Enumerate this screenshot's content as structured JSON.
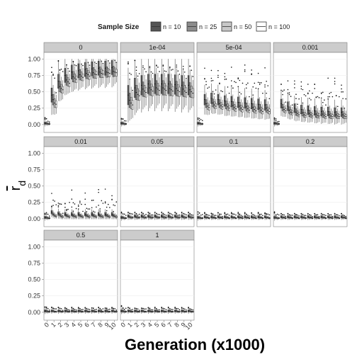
{
  "chart_data": {
    "type": "boxplot",
    "facet_labels": [
      "0",
      "1e-04",
      "5e-04",
      "0.001",
      "0.01",
      "0.05",
      "0.1",
      "0.2",
      "0.5",
      "1"
    ],
    "x_categories": [
      "0",
      "1",
      "2",
      "3",
      "4",
      "5",
      "6",
      "7",
      "8",
      "9",
      "10"
    ],
    "xlabel": "Generation (x1000)",
    "ylabel": "r",
    "ylabel_subscript": "d",
    "ylim": [
      -0.12,
      1.1
    ],
    "y_ticks": [
      0,
      0.25,
      0.5,
      0.75,
      1
    ],
    "y_tick_labels": [
      "0.00",
      "0.25",
      "0.50",
      "0.75",
      "1.00"
    ],
    "legend": {
      "title": "Sample Size",
      "position": "top",
      "entries": [
        {
          "label": "n = 10",
          "color": "#555555"
        },
        {
          "label": "n = 25",
          "color": "#8c8c8c"
        },
        {
          "label": "n = 50",
          "color": "#c8c8c8"
        },
        {
          "label": "n = 100",
          "color": "#ffffff"
        }
      ]
    },
    "medians": [
      {
        "n10": [
          0.02,
          0.45,
          0.66,
          0.75,
          0.8,
          0.82,
          0.84,
          0.85,
          0.86,
          0.86,
          0.87
        ],
        "n25": [
          0.02,
          0.38,
          0.58,
          0.68,
          0.73,
          0.76,
          0.78,
          0.79,
          0.8,
          0.8,
          0.81
        ],
        "n50": [
          0.01,
          0.33,
          0.55,
          0.65,
          0.71,
          0.74,
          0.76,
          0.77,
          0.78,
          0.79,
          0.8
        ],
        "n100": [
          0.01,
          0.31,
          0.53,
          0.63,
          0.69,
          0.72,
          0.74,
          0.76,
          0.77,
          0.78,
          0.79
        ]
      },
      {
        "n10": [
          0.02,
          0.45,
          0.56,
          0.6,
          0.62,
          0.62,
          0.62,
          0.62,
          0.61,
          0.6,
          0.6
        ],
        "n25": [
          0.02,
          0.37,
          0.49,
          0.54,
          0.56,
          0.56,
          0.56,
          0.55,
          0.55,
          0.54,
          0.53
        ],
        "n50": [
          0.01,
          0.33,
          0.46,
          0.51,
          0.53,
          0.54,
          0.54,
          0.53,
          0.52,
          0.51,
          0.5
        ],
        "n100": [
          0.01,
          0.3,
          0.44,
          0.49,
          0.51,
          0.52,
          0.52,
          0.51,
          0.5,
          0.49,
          0.48
        ]
      },
      {
        "n10": [
          0.02,
          0.38,
          0.4,
          0.38,
          0.36,
          0.35,
          0.34,
          0.33,
          0.32,
          0.31,
          0.3
        ],
        "n25": [
          0.02,
          0.32,
          0.33,
          0.32,
          0.3,
          0.29,
          0.28,
          0.27,
          0.26,
          0.25,
          0.25
        ],
        "n50": [
          0.01,
          0.28,
          0.3,
          0.29,
          0.27,
          0.26,
          0.25,
          0.24,
          0.23,
          0.22,
          0.22
        ],
        "n100": [
          0.01,
          0.26,
          0.28,
          0.27,
          0.25,
          0.24,
          0.23,
          0.22,
          0.21,
          0.2,
          0.2
        ]
      },
      {
        "n10": [
          0.02,
          0.32,
          0.28,
          0.25,
          0.23,
          0.22,
          0.21,
          0.2,
          0.2,
          0.19,
          0.19
        ],
        "n25": [
          0.02,
          0.26,
          0.22,
          0.19,
          0.18,
          0.17,
          0.16,
          0.16,
          0.15,
          0.15,
          0.15
        ],
        "n50": [
          0.01,
          0.23,
          0.19,
          0.17,
          0.15,
          0.15,
          0.14,
          0.14,
          0.13,
          0.13,
          0.13
        ],
        "n100": [
          0.01,
          0.21,
          0.18,
          0.15,
          0.14,
          0.13,
          0.13,
          0.12,
          0.12,
          0.12,
          0.12
        ]
      },
      {
        "n10": [
          0.02,
          0.1,
          0.08,
          0.07,
          0.07,
          0.07,
          0.07,
          0.07,
          0.07,
          0.07,
          0.07
        ],
        "n25": [
          0.02,
          0.07,
          0.06,
          0.05,
          0.05,
          0.05,
          0.05,
          0.05,
          0.05,
          0.05,
          0.05
        ],
        "n50": [
          0.01,
          0.05,
          0.04,
          0.04,
          0.04,
          0.04,
          0.04,
          0.04,
          0.04,
          0.04,
          0.04
        ],
        "n100": [
          0.01,
          0.04,
          0.03,
          0.03,
          0.03,
          0.03,
          0.03,
          0.03,
          0.03,
          0.03,
          0.03
        ]
      },
      {
        "n10": [
          0.02,
          0.04,
          0.04,
          0.04,
          0.04,
          0.04,
          0.04,
          0.04,
          0.04,
          0.04,
          0.04
        ],
        "n25": [
          0.02,
          0.03,
          0.03,
          0.03,
          0.03,
          0.03,
          0.03,
          0.03,
          0.03,
          0.03,
          0.03
        ],
        "n50": [
          0.01,
          0.02,
          0.02,
          0.02,
          0.02,
          0.02,
          0.02,
          0.02,
          0.02,
          0.02,
          0.02
        ],
        "n100": [
          0.01,
          0.02,
          0.02,
          0.02,
          0.02,
          0.02,
          0.02,
          0.02,
          0.02,
          0.02,
          0.02
        ]
      },
      {
        "n10": [
          0.02,
          0.03,
          0.03,
          0.03,
          0.03,
          0.03,
          0.03,
          0.03,
          0.03,
          0.03,
          0.03
        ],
        "n25": [
          0.02,
          0.02,
          0.02,
          0.02,
          0.02,
          0.02,
          0.02,
          0.02,
          0.02,
          0.02,
          0.02
        ],
        "n50": [
          0.01,
          0.02,
          0.02,
          0.02,
          0.02,
          0.02,
          0.02,
          0.02,
          0.02,
          0.02,
          0.02
        ],
        "n100": [
          0.01,
          0.01,
          0.01,
          0.01,
          0.01,
          0.01,
          0.01,
          0.01,
          0.01,
          0.01,
          0.01
        ]
      },
      {
        "n10": [
          0.02,
          0.03,
          0.03,
          0.03,
          0.03,
          0.03,
          0.03,
          0.03,
          0.03,
          0.03,
          0.03
        ],
        "n25": [
          0.02,
          0.02,
          0.02,
          0.02,
          0.02,
          0.02,
          0.02,
          0.02,
          0.02,
          0.02,
          0.02
        ],
        "n50": [
          0.01,
          0.02,
          0.02,
          0.02,
          0.02,
          0.02,
          0.02,
          0.02,
          0.02,
          0.02,
          0.02
        ],
        "n100": [
          0.01,
          0.01,
          0.01,
          0.01,
          0.01,
          0.01,
          0.01,
          0.01,
          0.01,
          0.01,
          0.01
        ]
      },
      {
        "n10": [
          0.02,
          0.02,
          0.02,
          0.02,
          0.02,
          0.02,
          0.02,
          0.02,
          0.02,
          0.02,
          0.02
        ],
        "n25": [
          0.02,
          0.02,
          0.02,
          0.02,
          0.02,
          0.02,
          0.02,
          0.02,
          0.02,
          0.02,
          0.02
        ],
        "n50": [
          0.01,
          0.01,
          0.01,
          0.01,
          0.01,
          0.01,
          0.01,
          0.01,
          0.01,
          0.01,
          0.01
        ],
        "n100": [
          0.01,
          0.01,
          0.01,
          0.01,
          0.01,
          0.01,
          0.01,
          0.01,
          0.01,
          0.01,
          0.01
        ]
      },
      {
        "n10": [
          0.02,
          0.02,
          0.02,
          0.02,
          0.02,
          0.02,
          0.02,
          0.02,
          0.02,
          0.02,
          0.02
        ],
        "n25": [
          0.02,
          0.02,
          0.02,
          0.02,
          0.02,
          0.02,
          0.02,
          0.02,
          0.02,
          0.02,
          0.02
        ],
        "n50": [
          0.01,
          0.01,
          0.01,
          0.01,
          0.01,
          0.01,
          0.01,
          0.01,
          0.01,
          0.01,
          0.01
        ],
        "n100": [
          0.01,
          0.01,
          0.01,
          0.01,
          0.01,
          0.01,
          0.01,
          0.01,
          0.01,
          0.01,
          0.01
        ]
      }
    ],
    "spread_iqr": [
      0.16,
      0.22,
      0.12,
      0.1,
      0.04,
      0.03,
      0.025,
      0.025,
      0.022,
      0.022
    ],
    "max_outlier": [
      0.98,
      0.98,
      0.95,
      0.75,
      0.5,
      0.1,
      0.1,
      0.08,
      0.08,
      0.08
    ]
  }
}
